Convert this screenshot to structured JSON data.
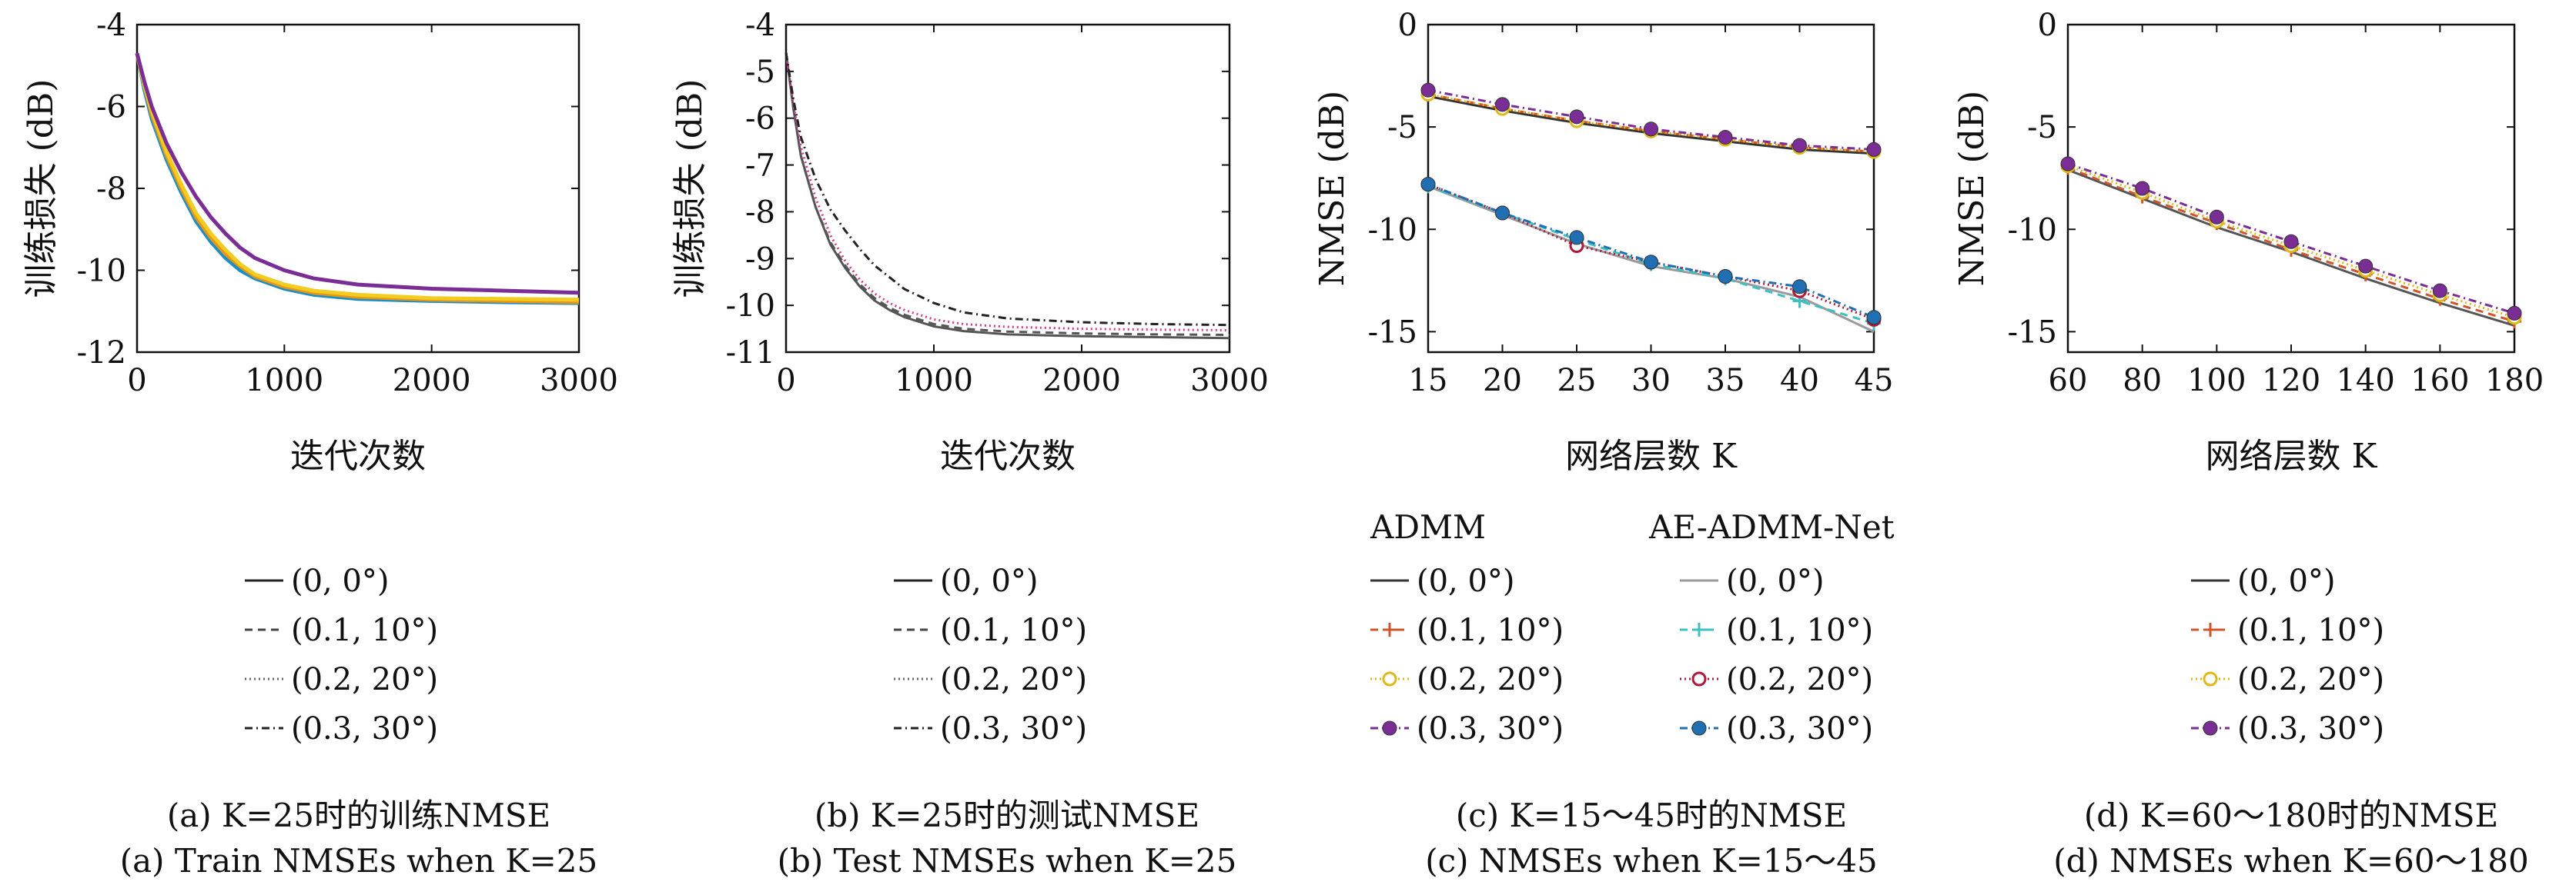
{
  "chart_data": [
    {
      "id": "a",
      "type": "line",
      "ylabel": "训练损失 (dB)",
      "xlabel": "迭代次数",
      "xlim": [
        0,
        3000
      ],
      "ylim": [
        -12,
        -4
      ],
      "xticks": [
        "0",
        "1000",
        "2000",
        "3000"
      ],
      "yticks": [
        "-4",
        "-6",
        "-8",
        "-10",
        "-12"
      ],
      "series": [
        {
          "name": "(0, 0°)",
          "color": "#1a8fc7",
          "dash": "",
          "x": [
            0,
            50,
            100,
            200,
            300,
            400,
            500,
            600,
            700,
            800,
            1000,
            1200,
            1500,
            2000,
            2500,
            3000
          ],
          "y": [
            -4.7,
            -5.6,
            -6.3,
            -7.3,
            -8.1,
            -8.8,
            -9.3,
            -9.7,
            -10.0,
            -10.2,
            -10.45,
            -10.6,
            -10.7,
            -10.75,
            -10.78,
            -10.8
          ]
        },
        {
          "name": "(0.1, 10°)",
          "color": "#e8951a",
          "dash": "",
          "x": [
            0,
            50,
            100,
            200,
            300,
            400,
            500,
            600,
            700,
            800,
            1000,
            1200,
            1500,
            2000,
            2500,
            3000
          ],
          "y": [
            -4.7,
            -5.5,
            -6.2,
            -7.2,
            -8.0,
            -8.7,
            -9.2,
            -9.6,
            -9.9,
            -10.15,
            -10.4,
            -10.55,
            -10.65,
            -10.72,
            -10.75,
            -10.78
          ]
        },
        {
          "name": "(0.2, 20°)",
          "color": "#f2cc1f",
          "dash": "",
          "x": [
            0,
            50,
            100,
            200,
            300,
            400,
            500,
            600,
            700,
            800,
            1000,
            1200,
            1500,
            2000,
            2500,
            3000
          ],
          "y": [
            -4.7,
            -5.5,
            -6.1,
            -7.1,
            -7.9,
            -8.6,
            -9.1,
            -9.5,
            -9.85,
            -10.1,
            -10.35,
            -10.5,
            -10.6,
            -10.68,
            -10.7,
            -10.72
          ]
        },
        {
          "name": "(0.3, 30°)",
          "color": "#7b2d96",
          "dash": "",
          "x": [
            0,
            50,
            100,
            200,
            300,
            400,
            500,
            600,
            700,
            800,
            1000,
            1200,
            1500,
            2000,
            2500,
            3000
          ],
          "y": [
            -4.7,
            -5.4,
            -6.0,
            -6.9,
            -7.6,
            -8.2,
            -8.7,
            -9.1,
            -9.45,
            -9.7,
            -10.0,
            -10.2,
            -10.35,
            -10.45,
            -10.5,
            -10.55
          ]
        }
      ],
      "legend": [
        {
          "label": "(0, 0°)",
          "dash": "",
          "color": "#222222"
        },
        {
          "label": "(0.1, 10°)",
          "dash": "10,7",
          "color": "#444444"
        },
        {
          "label": "(0.2, 20°)",
          "dash": "2,4",
          "color": "#666666"
        },
        {
          "label": "(0.3, 30°)",
          "dash": "10,5,2,5",
          "color": "#222222"
        }
      ],
      "caption_cn": "(a) K=25时的训练NMSE",
      "caption_en": "(a) Train NMSEs when K=25"
    },
    {
      "id": "b",
      "type": "line",
      "ylabel": "训练损失 (dB)",
      "xlabel": "迭代次数",
      "xlim": [
        0,
        3000
      ],
      "ylim": [
        -11,
        -4
      ],
      "xticks": [
        "0",
        "1000",
        "2000",
        "3000"
      ],
      "yticks": [
        "-4",
        "-5",
        "-6",
        "-7",
        "-8",
        "-9",
        "-10",
        "-11"
      ],
      "series": [
        {
          "name": "(0, 0°)",
          "color": "#555555",
          "dash": "",
          "x": [
            0,
            50,
            100,
            200,
            300,
            400,
            500,
            600,
            700,
            800,
            1000,
            1200,
            1500,
            2000,
            2500,
            3000
          ],
          "y": [
            -4.6,
            -5.8,
            -6.8,
            -7.9,
            -8.7,
            -9.2,
            -9.6,
            -9.9,
            -10.1,
            -10.25,
            -10.45,
            -10.55,
            -10.62,
            -10.66,
            -10.68,
            -10.7
          ]
        },
        {
          "name": "(0.1, 10°)",
          "color": "#555555",
          "dash": "10,7",
          "x": [
            0,
            50,
            100,
            200,
            300,
            400,
            500,
            600,
            700,
            800,
            1000,
            1200,
            1500,
            2000,
            2500,
            3000
          ],
          "y": [
            -4.6,
            -5.8,
            -6.8,
            -7.9,
            -8.65,
            -9.15,
            -9.55,
            -9.85,
            -10.05,
            -10.2,
            -10.4,
            -10.5,
            -10.56,
            -10.6,
            -10.62,
            -10.63
          ]
        },
        {
          "name": "(0.2, 20°)",
          "color": "#d43a8a",
          "dash": "2,4",
          "x": [
            0,
            50,
            100,
            200,
            300,
            400,
            500,
            600,
            700,
            800,
            1000,
            1200,
            1500,
            2000,
            2500,
            3000
          ],
          "y": [
            -4.6,
            -5.7,
            -6.6,
            -7.7,
            -8.5,
            -9.05,
            -9.45,
            -9.75,
            -9.95,
            -10.1,
            -10.3,
            -10.4,
            -10.46,
            -10.5,
            -10.52,
            -10.53
          ]
        },
        {
          "name": "(0.3, 30°)",
          "color": "#222222",
          "dash": "10,5,2,5",
          "x": [
            0,
            50,
            100,
            200,
            300,
            400,
            500,
            600,
            700,
            800,
            1000,
            1200,
            1500,
            2000,
            2500,
            3000
          ],
          "y": [
            -4.6,
            -5.6,
            -6.4,
            -7.3,
            -7.95,
            -8.4,
            -8.8,
            -9.15,
            -9.4,
            -9.65,
            -9.95,
            -10.15,
            -10.28,
            -10.36,
            -10.4,
            -10.42
          ]
        }
      ],
      "legend": [
        {
          "label": "(0, 0°)",
          "dash": "",
          "color": "#222222"
        },
        {
          "label": "(0.1, 10°)",
          "dash": "10,7",
          "color": "#444444"
        },
        {
          "label": "(0.2, 20°)",
          "dash": "2,4",
          "color": "#666666"
        },
        {
          "label": "(0.3, 30°)",
          "dash": "10,5,2,5",
          "color": "#222222"
        }
      ],
      "caption_cn": "(b) K=25时的测试NMSE",
      "caption_en": "(b) Test NMSEs when K=25"
    },
    {
      "id": "c",
      "type": "line",
      "ylabel": "NMSE (dB)",
      "xlabel": "网络层数 K",
      "xlim": [
        15,
        45
      ],
      "ylim": [
        -16,
        0
      ],
      "xticks": [
        "15",
        "20",
        "25",
        "30",
        "35",
        "40",
        "45"
      ],
      "yticks": [
        "0",
        "-5",
        "-10",
        "-15"
      ],
      "series": [
        {
          "name": "ADMM (0, 0°)",
          "color": "#333333",
          "dash": "",
          "marker": "none",
          "x": [
            15,
            20,
            25,
            30,
            35,
            40,
            45
          ],
          "y": [
            -3.5,
            -4.2,
            -4.8,
            -5.3,
            -5.7,
            -6.1,
            -6.3
          ]
        },
        {
          "name": "ADMM (0.1, 10°)",
          "color": "#d0552a",
          "dash": "10,7",
          "marker": "plus",
          "x": [
            15,
            20,
            25,
            30,
            35,
            40,
            45
          ],
          "y": [
            -3.4,
            -4.1,
            -4.7,
            -5.2,
            -5.6,
            -6.0,
            -6.2
          ]
        },
        {
          "name": "ADMM (0.2, 20°)",
          "color": "#e0b818",
          "dash": "2,4",
          "marker": "circle",
          "x": [
            15,
            20,
            25,
            30,
            35,
            40,
            45
          ],
          "y": [
            -3.4,
            -4.1,
            -4.7,
            -5.2,
            -5.6,
            -6.0,
            -6.2
          ]
        },
        {
          "name": "ADMM (0.3, 30°)",
          "color": "#7b2d96",
          "dash": "10,5,2,5",
          "marker": "dot",
          "x": [
            15,
            20,
            25,
            30,
            35,
            40,
            45
          ],
          "y": [
            -3.2,
            -3.9,
            -4.5,
            -5.1,
            -5.5,
            -5.9,
            -6.1
          ]
        },
        {
          "name": "AE-ADMM-Net (0, 0°)",
          "color": "#9a9a9a",
          "dash": "",
          "marker": "none",
          "x": [
            15,
            20,
            25,
            30,
            35,
            40,
            45
          ],
          "y": [
            -7.9,
            -9.3,
            -10.7,
            -11.8,
            -12.4,
            -13.3,
            -15.0
          ]
        },
        {
          "name": "AE-ADMM-Net (0.1, 10°)",
          "color": "#3cc0c0",
          "dash": "10,7",
          "marker": "plus",
          "x": [
            15,
            20,
            25,
            30,
            35,
            40,
            45
          ],
          "y": [
            -7.9,
            -9.2,
            -10.5,
            -11.7,
            -12.4,
            -13.5,
            -14.6
          ]
        },
        {
          "name": "AE-ADMM-Net (0.2, 20°)",
          "color": "#b0183a",
          "dash": "2,4",
          "marker": "circle",
          "x": [
            15,
            20,
            25,
            30,
            35,
            40,
            45
          ],
          "y": [
            -7.8,
            -9.2,
            -10.8,
            -11.6,
            -12.3,
            -13.0,
            -14.4
          ]
        },
        {
          "name": "AE-ADMM-Net (0.3, 30°)",
          "color": "#1f6fb2",
          "dash": "10,5,2,5",
          "marker": "dot",
          "x": [
            15,
            20,
            25,
            30,
            35,
            40,
            45
          ],
          "y": [
            -7.8,
            -9.2,
            -10.4,
            -11.6,
            -12.3,
            -12.8,
            -14.3
          ]
        }
      ],
      "legend_headers": [
        "ADMM",
        "AE-ADMM-Net"
      ],
      "legend_admm": [
        {
          "label": "(0, 0°)",
          "dash": "",
          "color": "#333333",
          "marker": "none"
        },
        {
          "label": "(0.1, 10°)",
          "dash": "10,7",
          "color": "#d0552a",
          "marker": "plus"
        },
        {
          "label": "(0.2, 20°)",
          "dash": "2,4",
          "color": "#e0b818",
          "marker": "circle"
        },
        {
          "label": "(0.3, 30°)",
          "dash": "10,5,2,5",
          "color": "#7b2d96",
          "marker": "dot"
        }
      ],
      "legend_net": [
        {
          "label": "(0, 0°)",
          "dash": "",
          "color": "#9a9a9a",
          "marker": "none"
        },
        {
          "label": "(0.1, 10°)",
          "dash": "10,7",
          "color": "#3cc0c0",
          "marker": "plus"
        },
        {
          "label": "(0.2, 20°)",
          "dash": "2,4",
          "color": "#b0183a",
          "marker": "circle"
        },
        {
          "label": "(0.3, 30°)",
          "dash": "10,5,2,5",
          "color": "#1f6fb2",
          "marker": "dot"
        }
      ],
      "caption_cn": "(c) K=15～45时的NMSE",
      "caption_en": "(c) NMSEs when K=15～45"
    },
    {
      "id": "d",
      "type": "line",
      "ylabel": "NMSE (dB)",
      "xlabel": "网络层数 K",
      "xlim": [
        60,
        180
      ],
      "ylim": [
        -16,
        0
      ],
      "xticks": [
        "60",
        "80",
        "100",
        "120",
        "140",
        "160",
        "180"
      ],
      "yticks": [
        "0",
        "-5",
        "-10",
        "-15"
      ],
      "series": [
        {
          "name": "(0, 0°)",
          "color": "#555555",
          "dash": "",
          "marker": "none",
          "x": [
            60,
            80,
            100,
            120,
            140,
            160,
            180
          ],
          "y": [
            -7.1,
            -8.5,
            -9.9,
            -11.1,
            -12.4,
            -13.6,
            -14.7
          ]
        },
        {
          "name": "(0.1, 10°)",
          "color": "#d0552a",
          "dash": "10,7",
          "marker": "plus",
          "x": [
            60,
            80,
            100,
            120,
            140,
            160,
            180
          ],
          "y": [
            -7.0,
            -8.4,
            -9.7,
            -11.0,
            -12.2,
            -13.4,
            -14.5
          ]
        },
        {
          "name": "(0.2, 20°)",
          "color": "#e0b818",
          "dash": "2,4",
          "marker": "circle",
          "x": [
            60,
            80,
            100,
            120,
            140,
            160,
            180
          ],
          "y": [
            -6.9,
            -8.2,
            -9.6,
            -10.8,
            -12.0,
            -13.2,
            -14.3
          ]
        },
        {
          "name": "(0.3, 30°)",
          "color": "#7b2d96",
          "dash": "10,5,2,5",
          "marker": "dot",
          "x": [
            60,
            80,
            100,
            120,
            140,
            160,
            180
          ],
          "y": [
            -6.8,
            -8.0,
            -9.4,
            -10.6,
            -11.8,
            -13.0,
            -14.1
          ]
        }
      ],
      "legend": [
        {
          "label": "(0, 0°)",
          "dash": "",
          "color": "#333333",
          "marker": "none"
        },
        {
          "label": "(0.1, 10°)",
          "dash": "10,7",
          "color": "#d0552a",
          "marker": "plus"
        },
        {
          "label": "(0.2, 20°)",
          "dash": "2,4",
          "color": "#e0b818",
          "marker": "circle"
        },
        {
          "label": "(0.3, 30°)",
          "dash": "10,5,2,5",
          "color": "#7b2d96",
          "marker": "dot"
        }
      ],
      "caption_cn": "(d) K=60～180时的NMSE",
      "caption_en": "(d) NMSEs when K=60～180"
    }
  ]
}
